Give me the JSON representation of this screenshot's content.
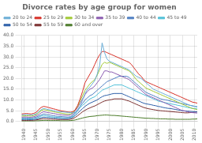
{
  "chart_data": {
    "type": "line",
    "title": "Divorce rates by age group for women",
    "x": [
      1939,
      1940,
      1941,
      1942,
      1943,
      1944,
      1945,
      1946,
      1947,
      1948,
      1949,
      1950,
      1951,
      1952,
      1953,
      1954,
      1955,
      1956,
      1957,
      1958,
      1959,
      1960,
      1961,
      1962,
      1963,
      1964,
      1965,
      1966,
      1967,
      1968,
      1969,
      1970,
      1971,
      1972,
      1973,
      1974,
      1975,
      1976,
      1977,
      1978,
      1979,
      1980,
      1981,
      1982,
      1983,
      1984,
      1985,
      1986,
      1987,
      1988,
      1989,
      1990,
      1991,
      1992,
      1993,
      1994,
      1995,
      1996,
      1997,
      1998,
      1999,
      2000,
      2001,
      2002,
      2003,
      2004,
      2005,
      2006,
      2007,
      2008,
      2009,
      2010,
      2011
    ],
    "xlim": [
      1939,
      2011
    ],
    "xticks": [
      1940,
      1945,
      1950,
      1955,
      1960,
      1965,
      1970,
      1975,
      1980,
      1985,
      1990,
      1995,
      2000,
      2005,
      2010
    ],
    "ylim": [
      0,
      40
    ],
    "yticks": [
      {
        "value": 0,
        "label": "0.0"
      },
      {
        "value": 5,
        "label": "5.0"
      },
      {
        "value": 10,
        "label": "10.0"
      },
      {
        "value": 15,
        "label": "15.0"
      },
      {
        "value": 20,
        "label": "20.0"
      },
      {
        "value": 25,
        "label": "25.0"
      },
      {
        "value": 30,
        "label": "30.0"
      },
      {
        "value": 35,
        "label": "35.0"
      },
      {
        "value": 40,
        "label": "40.0"
      }
    ],
    "grid": true,
    "legend": "upper left",
    "series": [
      {
        "name": "20 to 24",
        "color": "#6baed6",
        "values": [
          3.0,
          3.1,
          3.2,
          3.1,
          3.0,
          3.2,
          3.5,
          4.5,
          5.5,
          6.0,
          5.8,
          5.5,
          5.3,
          5.0,
          4.8,
          4.6,
          4.5,
          4.4,
          4.3,
          4.2,
          4.1,
          4.0,
          4.2,
          5.0,
          7.0,
          10.0,
          13.0,
          15.0,
          16.0,
          17.5,
          19.0,
          22.0,
          26.0,
          36.5,
          32.0,
          29.0,
          28.0,
          27.5,
          27.0,
          26.5,
          26.0,
          25.5,
          25.0,
          24.5,
          24.0,
          23.0,
          22.0,
          21.0,
          20.5,
          20.0,
          19.0,
          18.0,
          17.0,
          16.0,
          15.0,
          14.5,
          14.0,
          13.5,
          13.0,
          12.5,
          12.0,
          11.5,
          11.0,
          10.5,
          10.0,
          9.5,
          9.0,
          8.5,
          8.0,
          7.5,
          7.2,
          7.0,
          6.8
        ]
      },
      {
        "name": "25 to 29",
        "color": "#d73027",
        "values": [
          3.5,
          3.6,
          3.7,
          3.6,
          3.5,
          3.8,
          4.2,
          5.5,
          6.5,
          7.0,
          6.8,
          6.5,
          6.2,
          5.9,
          5.6,
          5.3,
          5.0,
          4.8,
          4.6,
          4.4,
          4.3,
          4.5,
          5.5,
          7.5,
          10.5,
          14.0,
          18.0,
          20.0,
          22.0,
          24.0,
          26.5,
          29.0,
          31.0,
          32.5,
          32.5,
          32.0,
          31.5,
          31.0,
          30.5,
          30.0,
          29.5,
          29.0,
          28.5,
          28.0,
          27.5,
          26.5,
          25.0,
          23.5,
          22.0,
          21.0,
          19.5,
          18.5,
          18.0,
          17.5,
          17.0,
          16.5,
          16.0,
          15.5,
          15.0,
          14.5,
          14.0,
          13.5,
          13.0,
          12.5,
          12.0,
          11.5,
          11.0,
          10.5,
          10.0,
          9.5,
          9.0,
          8.8,
          8.5
        ]
      },
      {
        "name": "30 to 34",
        "color": "#a1c935",
        "values": [
          2.5,
          2.6,
          2.7,
          2.6,
          2.5,
          2.8,
          3.2,
          4.0,
          5.0,
          5.5,
          5.3,
          5.0,
          4.8,
          4.5,
          4.3,
          4.1,
          3.9,
          3.7,
          3.5,
          3.4,
          3.5,
          4.0,
          5.5,
          7.0,
          9.5,
          12.0,
          14.5,
          16.0,
          17.5,
          18.5,
          19.5,
          21.5,
          24.0,
          26.5,
          27.5,
          27.0,
          27.5,
          27.0,
          26.5,
          26.0,
          25.5,
          25.0,
          24.5,
          24.0,
          23.5,
          22.5,
          21.0,
          19.5,
          18.5,
          17.5,
          16.5,
          15.5,
          15.0,
          14.5,
          14.0,
          13.5,
          13.0,
          12.5,
          12.0,
          11.5,
          11.0,
          10.5,
          10.0,
          9.5,
          9.0,
          8.5,
          8.0,
          7.5,
          7.0,
          6.5,
          6.0,
          5.8,
          5.5
        ]
      },
      {
        "name": "35 to 39",
        "color": "#8b5cb0",
        "values": [
          2.0,
          2.1,
          2.1,
          2.0,
          2.0,
          2.2,
          2.6,
          3.2,
          4.0,
          4.5,
          4.3,
          4.1,
          3.9,
          3.7,
          3.5,
          3.3,
          3.1,
          3.0,
          2.9,
          2.8,
          3.0,
          3.5,
          5.0,
          6.5,
          8.5,
          10.5,
          12.5,
          14.0,
          15.0,
          15.5,
          16.5,
          18.0,
          19.5,
          21.5,
          23.5,
          23.5,
          23.0,
          23.0,
          22.5,
          22.0,
          21.5,
          21.0,
          20.5,
          20.0,
          19.5,
          18.5,
          17.5,
          16.5,
          15.5,
          14.5,
          13.5,
          12.5,
          12.0,
          11.5,
          11.0,
          10.5,
          10.0,
          9.5,
          9.0,
          8.5,
          8.0,
          7.5,
          7.0,
          6.5,
          6.0,
          5.5,
          5.0,
          4.8,
          4.5,
          4.3,
          4.1,
          4.0,
          3.9
        ]
      },
      {
        "name": "40 to 44",
        "color": "#4f7fc2",
        "values": [
          1.5,
          1.6,
          1.6,
          1.5,
          1.5,
          1.7,
          2.0,
          2.5,
          3.0,
          3.5,
          3.3,
          3.1,
          2.9,
          2.7,
          2.5,
          2.4,
          2.3,
          2.2,
          2.1,
          2.0,
          2.2,
          2.8,
          4.0,
          5.5,
          7.0,
          8.5,
          10.0,
          11.0,
          12.0,
          12.5,
          13.5,
          14.5,
          15.5,
          16.5,
          17.5,
          18.5,
          19.0,
          19.5,
          20.0,
          20.5,
          21.0,
          21.0,
          21.0,
          21.0,
          20.5,
          19.5,
          18.5,
          17.5,
          16.5,
          15.5,
          14.5,
          13.5,
          13.0,
          12.5,
          12.0,
          11.5,
          11.0,
          10.5,
          10.2,
          10.0,
          9.8,
          9.5,
          9.2,
          9.0,
          8.7,
          8.5,
          8.2,
          8.0,
          7.8,
          7.5,
          7.3,
          7.0,
          6.8
        ]
      },
      {
        "name": "45 to 49",
        "color": "#50c0d8",
        "values": [
          1.2,
          1.3,
          1.3,
          1.2,
          1.2,
          1.4,
          1.7,
          2.0,
          2.5,
          2.8,
          2.6,
          2.4,
          2.2,
          2.1,
          2.0,
          1.9,
          1.8,
          1.7,
          1.7,
          1.7,
          1.9,
          2.4,
          3.5,
          5.0,
          6.5,
          7.5,
          8.5,
          9.5,
          10.5,
          11.0,
          11.5,
          12.5,
          13.5,
          14.5,
          15.0,
          15.5,
          16.0,
          16.5,
          17.0,
          17.0,
          17.0,
          17.0,
          16.5,
          16.0,
          15.5,
          15.0,
          14.5,
          14.0,
          13.5,
          13.0,
          12.5,
          12.0,
          11.5,
          11.0,
          10.5,
          10.0,
          9.5,
          9.2,
          9.0,
          8.7,
          8.5,
          8.2,
          8.0,
          7.8,
          7.5,
          7.3,
          7.0,
          6.8,
          6.5,
          6.3,
          6.1,
          6.0,
          5.8
        ]
      },
      {
        "name": "50 to 54",
        "color": "#2c5fa8",
        "values": [
          0.8,
          0.9,
          0.9,
          0.8,
          0.8,
          0.9,
          1.1,
          1.4,
          1.7,
          2.0,
          1.9,
          1.8,
          1.7,
          1.6,
          1.5,
          1.4,
          1.4,
          1.3,
          1.3,
          1.3,
          1.5,
          1.9,
          2.8,
          3.8,
          5.0,
          6.0,
          7.0,
          7.8,
          8.5,
          9.0,
          9.5,
          10.0,
          10.8,
          11.5,
          12.0,
          12.2,
          12.5,
          12.8,
          13.0,
          13.0,
          13.0,
          13.0,
          12.5,
          12.0,
          11.5,
          11.0,
          10.5,
          10.0,
          9.5,
          9.0,
          8.5,
          8.2,
          8.0,
          7.8,
          7.5,
          7.3,
          7.0,
          6.8,
          6.5,
          6.3,
          6.1,
          6.0,
          5.8,
          5.6,
          5.4,
          5.2,
          5.0,
          4.9,
          4.8,
          4.7,
          4.6,
          4.5,
          4.4
        ]
      },
      {
        "name": "55 to 59",
        "color": "#7b3030",
        "values": [
          0.5,
          0.5,
          0.5,
          0.5,
          0.5,
          0.6,
          0.7,
          0.9,
          1.1,
          1.3,
          1.2,
          1.1,
          1.1,
          1.0,
          1.0,
          0.9,
          0.9,
          0.9,
          0.9,
          0.9,
          1.0,
          1.3,
          1.9,
          2.7,
          3.6,
          4.5,
          5.2,
          5.8,
          6.3,
          6.8,
          7.2,
          7.8,
          8.4,
          9.0,
          9.5,
          9.8,
          10.0,
          10.2,
          10.5,
          10.5,
          10.5,
          10.5,
          10.2,
          9.8,
          9.5,
          9.0,
          8.5,
          8.0,
          7.5,
          7.0,
          6.5,
          6.2,
          5.9,
          5.7,
          5.5,
          5.3,
          5.1,
          5.0,
          4.9,
          4.8,
          4.7,
          4.6,
          4.5,
          4.4,
          4.3,
          4.2,
          4.1,
          4.0,
          4.0,
          4.1,
          4.2,
          4.3,
          4.5
        ]
      },
      {
        "name": "60 and over",
        "color": "#4a7a28",
        "values": [
          0.2,
          0.2,
          0.2,
          0.2,
          0.2,
          0.2,
          0.3,
          0.3,
          0.4,
          0.5,
          0.5,
          0.4,
          0.4,
          0.4,
          0.4,
          0.4,
          0.3,
          0.3,
          0.3,
          0.3,
          0.4,
          0.5,
          0.7,
          1.0,
          1.3,
          1.6,
          1.9,
          2.1,
          2.3,
          2.4,
          2.5,
          2.7,
          2.8,
          2.9,
          3.0,
          3.0,
          2.9,
          2.8,
          2.8,
          2.7,
          2.6,
          2.5,
          2.4,
          2.3,
          2.2,
          2.1,
          2.0,
          1.9,
          1.8,
          1.7,
          1.6,
          1.5,
          1.5,
          1.4,
          1.4,
          1.3,
          1.3,
          1.2,
          1.2,
          1.2,
          1.1,
          1.1,
          1.1,
          1.0,
          1.0,
          1.0,
          1.0,
          1.0,
          1.0,
          1.0,
          1.1,
          1.1,
          1.2
        ]
      }
    ]
  }
}
